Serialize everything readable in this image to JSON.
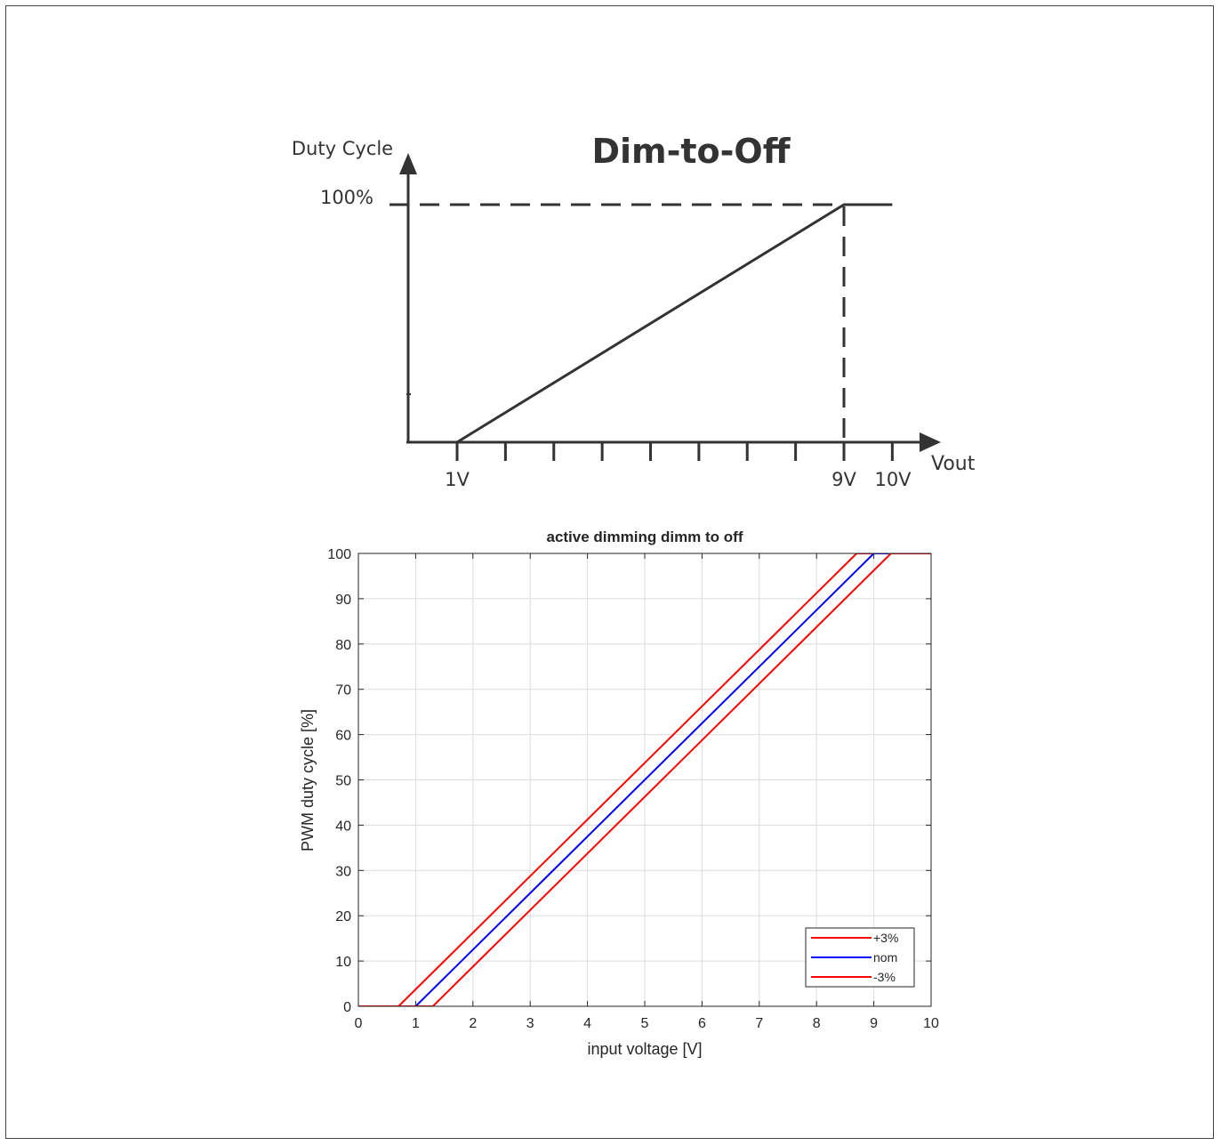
{
  "chart_data": [
    {
      "type": "line",
      "title": "Dim-to-Off",
      "ylabel": "Duty Cycle",
      "xlabel": "Vout",
      "y_tick_label": "100%",
      "x_tick_labels": [
        "1V",
        "9V",
        "10V"
      ],
      "minor_ticks_between_1V_and_9V": 8,
      "series": [
        {
          "points": [
            [
              1,
              0
            ],
            [
              9,
              100
            ],
            [
              10,
              100
            ]
          ]
        }
      ],
      "colors": {
        "line": "#333333"
      }
    },
    {
      "type": "line",
      "title": "active dimming dimm to off",
      "xlabel": "input voltage [V]",
      "ylabel": "PWM duty cycle [%]",
      "xlim": [
        0,
        10
      ],
      "ylim": [
        0,
        100
      ],
      "xticks": [
        "0",
        "1",
        "2",
        "3",
        "4",
        "5",
        "6",
        "7",
        "8",
        "9",
        "10"
      ],
      "yticks": [
        "0",
        "10",
        "20",
        "30",
        "40",
        "50",
        "60",
        "70",
        "80",
        "90",
        "100"
      ],
      "grid": true,
      "legend_placement": "bottom-right",
      "series": [
        {
          "name": "+3%",
          "color": "#ff0000",
          "x": [
            0,
            0.7,
            8.7,
            10
          ],
          "y": [
            0,
            0,
            100,
            100
          ]
        },
        {
          "name": "nom",
          "color": "#0000ff",
          "x": [
            0,
            1.0,
            9.0,
            10
          ],
          "y": [
            0,
            0,
            100,
            100
          ]
        },
        {
          "name": "-3%",
          "color": "#ff0000",
          "x": [
            0,
            1.3,
            9.3,
            10
          ],
          "y": [
            0,
            0,
            100,
            100
          ]
        }
      ]
    }
  ]
}
